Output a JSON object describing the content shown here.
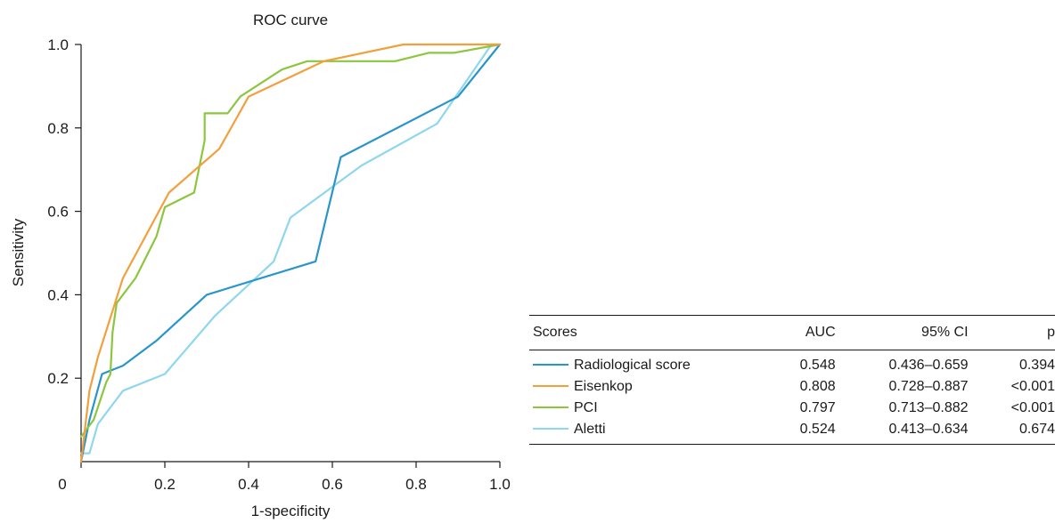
{
  "chart_data": {
    "type": "line",
    "title": "ROC curve",
    "xlabel": "1-specificity",
    "ylabel": "Sensitivity",
    "xlim": [
      0,
      1
    ],
    "ylim": [
      0,
      1
    ],
    "xticks": [
      "0",
      "0.2",
      "0.4",
      "0.6",
      "0.8",
      "1.0"
    ],
    "yticks": [
      "0.2",
      "0.4",
      "0.6",
      "0.8",
      "1.0"
    ],
    "grid": false,
    "legend_position": "table below-right",
    "series": [
      {
        "name": "Radiological score",
        "color": "#2a95c9",
        "x": [
          0,
          0.02,
          0.05,
          0.1,
          0.18,
          0.3,
          0.56,
          0.62,
          0.9,
          1.0
        ],
        "y": [
          0,
          0.1,
          0.21,
          0.23,
          0.29,
          0.4,
          0.48,
          0.73,
          0.875,
          1.0
        ]
      },
      {
        "name": "Eisenkop",
        "color": "#f2a03d",
        "x": [
          0,
          0.02,
          0.04,
          0.1,
          0.21,
          0.33,
          0.4,
          0.58,
          0.77,
          1.0
        ],
        "y": [
          0,
          0.17,
          0.25,
          0.44,
          0.645,
          0.75,
          0.875,
          0.96,
          1.0,
          1.0
        ]
      },
      {
        "name": "PCI",
        "color": "#8cc63f",
        "x": [
          0,
          0.03,
          0.06,
          0.07,
          0.075,
          0.085,
          0.13,
          0.18,
          0.2,
          0.27,
          0.295,
          0.295,
          0.35,
          0.38,
          0.48,
          0.54,
          0.75,
          0.83,
          0.89,
          1.0
        ],
        "y": [
          0.06,
          0.1,
          0.19,
          0.21,
          0.31,
          0.38,
          0.44,
          0.54,
          0.61,
          0.645,
          0.77,
          0.835,
          0.835,
          0.875,
          0.94,
          0.96,
          0.96,
          0.98,
          0.98,
          1.0
        ],
        "ylim_note": ""
      },
      {
        "name": "Aletti",
        "color": "#8fd6ef",
        "x": [
          0,
          0.02,
          0.04,
          0.1,
          0.2,
          0.32,
          0.46,
          0.5,
          0.67,
          0.85,
          0.98,
          1.0
        ],
        "y": [
          0.02,
          0.02,
          0.09,
          0.17,
          0.21,
          0.35,
          0.48,
          0.585,
          0.71,
          0.81,
          1.0,
          1.0
        ]
      }
    ]
  },
  "table": {
    "headers": [
      "Scores",
      "AUC",
      "95% CI",
      "p"
    ],
    "rows": [
      {
        "score": "Radiological score",
        "auc": "0.548",
        "ci": "0.436–0.659",
        "p": "0.394",
        "color": "#2a95c9"
      },
      {
        "score": "Eisenkop",
        "auc": "0.808",
        "ci": "0.728–0.887",
        "p": "<0.001",
        "color": "#f2a03d"
      },
      {
        "score": "PCI",
        "auc": "0.797",
        "ci": "0.713–0.882",
        "p": "<0.001",
        "color": "#8cc63f"
      },
      {
        "score": "Aletti",
        "auc": "0.524",
        "ci": "0.413–0.634",
        "p": "0.674",
        "color": "#8fd6ef"
      }
    ]
  }
}
